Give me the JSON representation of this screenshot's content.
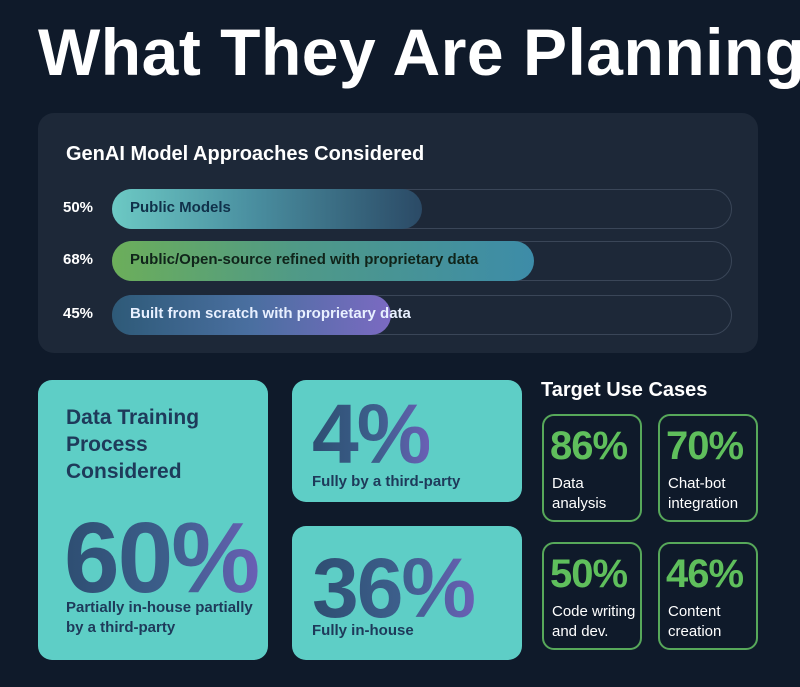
{
  "title": "What They Are Planning",
  "approaches": {
    "title": "GenAI Model Approaches Considered",
    "bars": [
      {
        "pct_label": "50%",
        "value": 50,
        "label": "Public Models"
      },
      {
        "pct_label": "68%",
        "value": 68,
        "label": "Public/Open-source refined with proprietary data"
      },
      {
        "pct_label": "45%",
        "value": 45,
        "label": "Built from scratch with proprietary data"
      }
    ]
  },
  "training": {
    "heading": "Data Training Process Considered",
    "main_value": "60%",
    "main_label": "Partially in-house partially by a third-party",
    "third_party_value": "4%",
    "third_party_label": "Fully by a third-party",
    "in_house_value": "36%",
    "in_house_label": "Fully in-house"
  },
  "use_cases": {
    "title": "Target Use Cases",
    "items": [
      {
        "value": "86%",
        "label": "Data analysis"
      },
      {
        "value": "70%",
        "label": "Chat-bot integration"
      },
      {
        "value": "50%",
        "label": "Code writing and dev."
      },
      {
        "value": "46%",
        "label": "Content creation"
      }
    ]
  },
  "colors": {
    "background": "#0f1a2a",
    "panel": "#1d2838",
    "teal_card": "#5ecec6",
    "green_accent": "#5fbf5c"
  }
}
